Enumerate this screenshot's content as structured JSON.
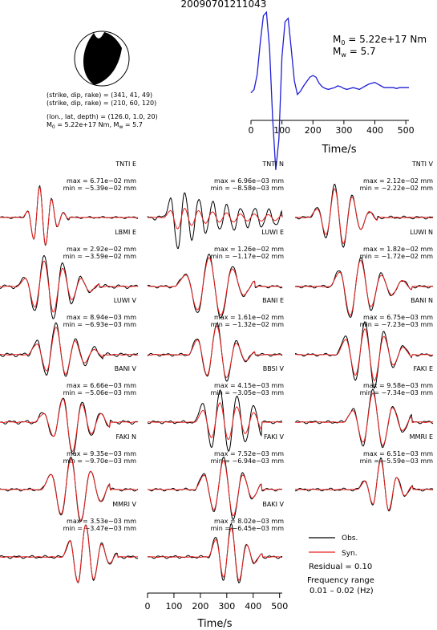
{
  "title": "20090701211043",
  "mechanism": {
    "lines": [
      "(strike, dip, rake) = (341, 41, 49)",
      "(strike, dip, rake) = (210, 60, 120)",
      "(lon., lat, depth) = (126.0, 1.0, 20)"
    ],
    "m0_part": "M",
    "m0_sub": "0",
    "m0_tail": " = 5.22e+17 Nm, M",
    "mw_sub": "w",
    "mw_tail": " = 5.7"
  },
  "stf": {
    "m0_label": "M",
    "m0_sub": "0",
    "m0_value": " = 5.22e+17 Nm",
    "mw_label": "M",
    "mw_sub": "w",
    "mw_value": " = 5.7",
    "xlabel": "Time/s",
    "xticks": [
      "0",
      "100",
      "200",
      "300",
      "400",
      "500"
    ]
  },
  "legend": {
    "obs": "Obs.",
    "syn": "Syn.",
    "residual": "Residual = 0.10",
    "freq1": "Frequency range",
    "freq2": "0.01 – 0.02 (Hz)"
  },
  "bottom_axis": {
    "xlabel": "Time/s",
    "xticks": [
      "0",
      "100",
      "200",
      "300",
      "400",
      "500"
    ]
  },
  "colors": {
    "observed": "#000000",
    "synthetic": "#e8201e",
    "stf": "#1f1fd6"
  },
  "chart_data": [
    {
      "type": "line",
      "title": "",
      "xlabel": "Time/s",
      "xlim": [
        0,
        510
      ],
      "description_series": "moment rate source time function",
      "series": [
        {
          "x": [
            0,
            10,
            20,
            30,
            40,
            50,
            60,
            70,
            80,
            90,
            100,
            110,
            120,
            130,
            140,
            150,
            160,
            170,
            180,
            190,
            200,
            210,
            220,
            230,
            240,
            250,
            260,
            270,
            280,
            290,
            300,
            310,
            320,
            330,
            340,
            350,
            360,
            370,
            380,
            390,
            400,
            410,
            420,
            430,
            440,
            450,
            460,
            470,
            480,
            490,
            500,
            510
          ],
          "values": [
            0.04,
            0.08,
            0.25,
            0.62,
            0.93,
            0.97,
            0.55,
            -0.25,
            -0.85,
            -0.5,
            0.45,
            0.86,
            0.9,
            0.55,
            0.18,
            0.02,
            0.06,
            0.12,
            0.17,
            0.22,
            0.24,
            0.22,
            0.15,
            0.11,
            0.09,
            0.08,
            0.09,
            0.1,
            0.12,
            0.11,
            0.09,
            0.08,
            0.09,
            0.1,
            0.09,
            0.08,
            0.1,
            0.12,
            0.14,
            0.15,
            0.16,
            0.14,
            0.12,
            0.1,
            0.1,
            0.1,
            0.1,
            0.09,
            0.1,
            0.1,
            0.1,
            0.1
          ]
        }
      ]
    },
    {
      "type": "line",
      "xlabel": "Time/s",
      "xlim": [
        0,
        510
      ],
      "stations": [
        {
          "name": "TNTI E",
          "max": "max = 6.71e−02 mm",
          "min": "min = −5.39e−02 mm",
          "onset": 0.16,
          "dur": 0.34,
          "peaks": [
            0.0,
            0.2,
            -0.7,
            1.0,
            -0.9,
            0.6,
            -0.3,
            0.15,
            -0.05
          ],
          "syn_scale": 0.95,
          "noise": 0.02
        },
        {
          "name": "TNTI N",
          "max": "max = 6.96e−03 mm",
          "min": "min = −8.58e−03 mm",
          "onset": 0.12,
          "dur": 0.88,
          "peaks": [
            0.0,
            0.6,
            -1.0,
            0.8,
            -0.7,
            0.6,
            -0.5,
            0.5,
            -0.4,
            0.4,
            -0.4,
            0.3,
            -0.3,
            0.3,
            -0.3,
            0.25,
            -0.25,
            0.2
          ],
          "syn_scale": 0.35,
          "noise": 0.05
        },
        {
          "name": "TNTI V",
          "max": "max = 2.12e−02 mm",
          "min": "min = −2.22e−02 mm",
          "onset": 0.1,
          "dur": 0.5,
          "peaks": [
            0.0,
            0.3,
            -0.6,
            1.0,
            -0.9,
            0.7,
            -0.4,
            0.2,
            -0.1
          ],
          "syn_scale": 0.9,
          "noise": 0.03
        },
        {
          "name": "LBMI E",
          "max": "max = 2.92e−02 mm",
          "min": "min = −3.59e−02 mm",
          "onset": 0.12,
          "dur": 0.6,
          "peaks": [
            0.0,
            0.3,
            -0.8,
            1.0,
            -1.0,
            0.7,
            -0.5,
            0.3,
            -0.2,
            0.1
          ],
          "syn_scale": 0.8,
          "noise": 0.04
        },
        {
          "name": "LUWI E",
          "max": "max = 1.26e−02 mm",
          "min": "min = −1.17e−02 mm",
          "onset": 0.2,
          "dur": 0.6,
          "peaks": [
            0.0,
            0.4,
            -0.8,
            1.0,
            -1.0,
            0.6,
            -0.3,
            0.2
          ],
          "syn_scale": 0.9,
          "noise": 0.03
        },
        {
          "name": "LUWI N",
          "max": "max = 1.82e−02 mm",
          "min": "min = −1.72e−02 mm",
          "onset": 0.25,
          "dur": 0.6,
          "peaks": [
            0.0,
            0.5,
            -1.0,
            0.9,
            -0.7,
            0.4,
            -0.3,
            0.2,
            -0.1
          ],
          "syn_scale": 0.9,
          "noise": 0.03
        },
        {
          "name": "LUWI V",
          "max": "max = 8.94e−03 mm",
          "min": "min = −6.93e−03 mm",
          "onset": 0.2,
          "dur": 0.55,
          "peaks": [
            0.0,
            0.4,
            -0.6,
            1.0,
            -0.7,
            0.5,
            -0.3,
            0.2,
            -0.1
          ],
          "syn_scale": 0.85,
          "noise": 0.04
        },
        {
          "name": "BANI E",
          "max": "max = 1.61e−02 mm",
          "min": "min = −1.32e−02 mm",
          "onset": 0.3,
          "dur": 0.5,
          "peaks": [
            0.0,
            0.5,
            -0.7,
            1.0,
            -0.8,
            0.4,
            -0.2,
            0.1
          ],
          "syn_scale": 0.9,
          "noise": 0.03
        },
        {
          "name": "BANI N",
          "max": "max = 6.75e−03 mm",
          "min": "min = −7.23e−03 mm",
          "onset": 0.3,
          "dur": 0.55,
          "peaks": [
            0.0,
            0.6,
            -0.8,
            1.0,
            -1.0,
            0.7,
            -0.4,
            0.3,
            -0.1
          ],
          "syn_scale": 0.8,
          "noise": 0.03
        },
        {
          "name": "BANI V",
          "max": "max = 6.66e−03 mm",
          "min": "min = −5.06e−03 mm",
          "onset": 0.25,
          "dur": 0.55,
          "peaks": [
            0.0,
            0.3,
            -0.5,
            0.8,
            -1.0,
            0.6,
            -0.4,
            0.3,
            -0.2
          ],
          "syn_scale": 0.9,
          "noise": 0.04
        },
        {
          "name": "BBSI V",
          "max": "max = 4.15e−03 mm",
          "min": "min = −3.05e−03 mm",
          "onset": 0.35,
          "dur": 0.5,
          "peaks": [
            0.0,
            0.6,
            -0.8,
            1.0,
            -0.9,
            0.8,
            -0.6,
            0.5,
            -0.4
          ],
          "syn_scale": 0.6,
          "noise": 0.03
        },
        {
          "name": "FAKI E",
          "max": "max = 9.58e−03 mm",
          "min": "min = −7.34e−03 mm",
          "onset": 0.35,
          "dur": 0.5,
          "peaks": [
            0.0,
            0.4,
            -0.7,
            1.0,
            -0.8,
            0.5,
            -0.3,
            0.2
          ],
          "syn_scale": 0.9,
          "noise": 0.03
        },
        {
          "name": "FAKI N",
          "max": "max = 9.35e−03 mm",
          "min": "min = −9.70e−03 mm",
          "onset": 0.3,
          "dur": 0.5,
          "peaks": [
            0.0,
            0.5,
            -0.8,
            1.0,
            -1.0,
            0.6,
            -0.4,
            0.2
          ],
          "syn_scale": 0.95,
          "noise": 0.03
        },
        {
          "name": "FAKI V",
          "max": "max = 7.52e−03 mm",
          "min": "min = −6.94e−03 mm",
          "onset": 0.35,
          "dur": 0.5,
          "peaks": [
            0.0,
            0.5,
            -0.7,
            1.0,
            -0.9,
            0.5,
            -0.3,
            0.2
          ],
          "syn_scale": 0.9,
          "noise": 0.03
        },
        {
          "name": "MMRI E",
          "max": "max = 6.51e−03 mm",
          "min": "min = −5.59e−03 mm",
          "onset": 0.45,
          "dur": 0.4,
          "peaks": [
            0.0,
            0.3,
            -0.5,
            1.0,
            -0.7,
            0.4,
            -0.2,
            0.1
          ],
          "syn_scale": 0.9,
          "noise": 0.03
        },
        {
          "name": "MMRI V",
          "max": "max = 3.53e−03 mm",
          "min": "min = −3.47e−03 mm",
          "onset": 0.45,
          "dur": 0.4,
          "peaks": [
            0.0,
            0.5,
            -0.8,
            1.0,
            -0.7,
            0.4,
            -0.2,
            0.1
          ],
          "syn_scale": 1.0,
          "noise": 0.03
        },
        {
          "name": "BAKI V",
          "max": "max = 8.02e−03 mm",
          "min": "min = −6.45e−03 mm",
          "onset": 0.45,
          "dur": 0.4,
          "peaks": [
            0.0,
            0.6,
            -0.7,
            1.0,
            -0.8,
            0.4,
            -0.2,
            0.1
          ],
          "syn_scale": 0.9,
          "noise": 0.03
        }
      ]
    }
  ]
}
